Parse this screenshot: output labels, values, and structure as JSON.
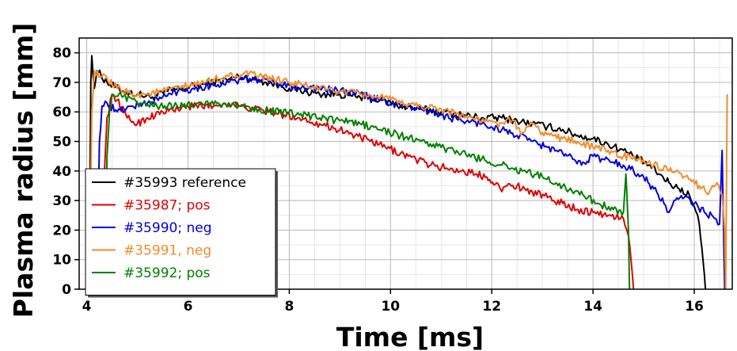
{
  "chart_data": {
    "type": "line",
    "xlabel": "Time [ms]",
    "ylabel": "Plasma radius [mm]",
    "xlim": [
      3.85,
      16.75
    ],
    "ylim": [
      0,
      85
    ],
    "x_ticks": [
      4,
      6,
      8,
      10,
      12,
      14,
      16
    ],
    "y_ticks": [
      0,
      10,
      20,
      30,
      40,
      50,
      60,
      70,
      80
    ],
    "grid": true,
    "legend_position": "lower-left",
    "series": [
      {
        "name": "#35993 reference",
        "color": "#000000",
        "points": [
          [
            4.05,
            0
          ],
          [
            4.08,
            70
          ],
          [
            4.1,
            79
          ],
          [
            4.15,
            68
          ],
          [
            4.2,
            74
          ],
          [
            4.4,
            70
          ],
          [
            4.7,
            67
          ],
          [
            5.0,
            66
          ],
          [
            5.3,
            65
          ],
          [
            5.6,
            67
          ],
          [
            5.9,
            68
          ],
          [
            6.2,
            69
          ],
          [
            6.5,
            70
          ],
          [
            6.8,
            71
          ],
          [
            7.0,
            72
          ],
          [
            7.3,
            71
          ],
          [
            7.6,
            70
          ],
          [
            7.8,
            69
          ],
          [
            8.0,
            68
          ],
          [
            8.3,
            67
          ],
          [
            8.6,
            66
          ],
          [
            9.0,
            66
          ],
          [
            9.4,
            65
          ],
          [
            9.8,
            64
          ],
          [
            10.2,
            62
          ],
          [
            10.6,
            61
          ],
          [
            11.0,
            60
          ],
          [
            11.4,
            59
          ],
          [
            11.8,
            58
          ],
          [
            12.2,
            58
          ],
          [
            12.5,
            57
          ],
          [
            12.8,
            56
          ],
          [
            13.1,
            55
          ],
          [
            13.4,
            54
          ],
          [
            13.7,
            52
          ],
          [
            14.0,
            51
          ],
          [
            14.3,
            49
          ],
          [
            14.6,
            47
          ],
          [
            14.9,
            44
          ],
          [
            15.1,
            42
          ],
          [
            15.3,
            39
          ],
          [
            15.5,
            36
          ],
          [
            15.7,
            34
          ],
          [
            15.9,
            32
          ],
          [
            16.0,
            28
          ],
          [
            16.1,
            22
          ],
          [
            16.15,
            14
          ],
          [
            16.2,
            5
          ],
          [
            16.22,
            0
          ]
        ]
      },
      {
        "name": "#35987; pos",
        "color": "#e00000",
        "points": [
          [
            4.3,
            0
          ],
          [
            4.35,
            40
          ],
          [
            4.4,
            58
          ],
          [
            4.5,
            66
          ],
          [
            4.6,
            64
          ],
          [
            4.8,
            58
          ],
          [
            5.0,
            56
          ],
          [
            5.2,
            58
          ],
          [
            5.5,
            60
          ],
          [
            5.8,
            61
          ],
          [
            6.1,
            62
          ],
          [
            6.5,
            62
          ],
          [
            6.8,
            63
          ],
          [
            7.0,
            62
          ],
          [
            7.3,
            61
          ],
          [
            7.6,
            60
          ],
          [
            7.9,
            59
          ],
          [
            8.2,
            58
          ],
          [
            8.6,
            56
          ],
          [
            9.0,
            54
          ],
          [
            9.3,
            52
          ],
          [
            9.6,
            50
          ],
          [
            9.9,
            48
          ],
          [
            10.2,
            46
          ],
          [
            10.5,
            44
          ],
          [
            10.8,
            42
          ],
          [
            11.1,
            41
          ],
          [
            11.4,
            40
          ],
          [
            11.7,
            39
          ],
          [
            11.9,
            38
          ],
          [
            12.1,
            36
          ],
          [
            12.2,
            33
          ],
          [
            12.3,
            35
          ],
          [
            12.5,
            35
          ],
          [
            12.8,
            33
          ],
          [
            13.1,
            31
          ],
          [
            13.4,
            29
          ],
          [
            13.7,
            27
          ],
          [
            14.0,
            26
          ],
          [
            14.3,
            25
          ],
          [
            14.6,
            24
          ],
          [
            14.7,
            18
          ],
          [
            14.75,
            10
          ],
          [
            14.8,
            0
          ]
        ]
      },
      {
        "name": "#35990; neg",
        "color": "#0000dd",
        "points": [
          [
            4.2,
            0
          ],
          [
            4.25,
            50
          ],
          [
            4.3,
            62
          ],
          [
            4.4,
            63
          ],
          [
            4.6,
            60
          ],
          [
            4.9,
            62
          ],
          [
            5.2,
            63
          ],
          [
            5.5,
            65
          ],
          [
            5.8,
            67
          ],
          [
            6.1,
            68
          ],
          [
            6.5,
            69
          ],
          [
            6.8,
            70
          ],
          [
            7.1,
            71
          ],
          [
            7.4,
            71
          ],
          [
            7.7,
            70
          ],
          [
            8.0,
            69
          ],
          [
            8.3,
            68
          ],
          [
            8.6,
            68
          ],
          [
            9.0,
            67
          ],
          [
            9.4,
            66
          ],
          [
            9.8,
            64
          ],
          [
            10.2,
            62
          ],
          [
            10.6,
            61
          ],
          [
            11.0,
            59
          ],
          [
            11.4,
            57
          ],
          [
            11.8,
            56
          ],
          [
            12.2,
            54
          ],
          [
            12.5,
            52
          ],
          [
            12.8,
            50
          ],
          [
            13.1,
            48
          ],
          [
            13.4,
            46
          ],
          [
            13.6,
            44
          ],
          [
            13.8,
            43
          ],
          [
            14.0,
            45
          ],
          [
            14.2,
            44
          ],
          [
            14.4,
            43
          ],
          [
            14.6,
            42
          ],
          [
            14.8,
            40
          ],
          [
            15.0,
            38
          ],
          [
            15.2,
            34
          ],
          [
            15.4,
            29
          ],
          [
            15.5,
            26
          ],
          [
            15.6,
            30
          ],
          [
            15.8,
            31
          ],
          [
            16.0,
            29
          ],
          [
            16.2,
            26
          ],
          [
            16.4,
            24
          ],
          [
            16.5,
            22
          ],
          [
            16.55,
            47
          ],
          [
            16.6,
            0
          ]
        ]
      },
      {
        "name": "#35991, neg",
        "color": "#f28c28",
        "points": [
          [
            4.05,
            0
          ],
          [
            4.1,
            60
          ],
          [
            4.15,
            74
          ],
          [
            4.3,
            72
          ],
          [
            4.6,
            68
          ],
          [
            4.9,
            66
          ],
          [
            5.2,
            66
          ],
          [
            5.5,
            67
          ],
          [
            5.8,
            68
          ],
          [
            6.1,
            69
          ],
          [
            6.5,
            71
          ],
          [
            6.8,
            72
          ],
          [
            7.1,
            73
          ],
          [
            7.4,
            72
          ],
          [
            7.7,
            71
          ],
          [
            8.0,
            70
          ],
          [
            8.3,
            69
          ],
          [
            8.6,
            68
          ],
          [
            9.0,
            67
          ],
          [
            9.4,
            66
          ],
          [
            9.8,
            65
          ],
          [
            10.2,
            63
          ],
          [
            10.6,
            62
          ],
          [
            11.0,
            61
          ],
          [
            11.4,
            59
          ],
          [
            11.8,
            57
          ],
          [
            12.1,
            56
          ],
          [
            12.4,
            57
          ],
          [
            12.6,
            53
          ],
          [
            12.8,
            56
          ],
          [
            13.0,
            53
          ],
          [
            13.2,
            52
          ],
          [
            13.4,
            51
          ],
          [
            13.7,
            50
          ],
          [
            14.0,
            48
          ],
          [
            14.3,
            47
          ],
          [
            14.6,
            45
          ],
          [
            14.9,
            44
          ],
          [
            15.2,
            42
          ],
          [
            15.5,
            40
          ],
          [
            15.8,
            38
          ],
          [
            16.1,
            35
          ],
          [
            16.3,
            33
          ],
          [
            16.45,
            36
          ],
          [
            16.55,
            32
          ],
          [
            16.6,
            20
          ],
          [
            16.62,
            0
          ],
          [
            16.65,
            66
          ]
        ]
      },
      {
        "name": "#35992; pos",
        "color": "#008000",
        "points": [
          [
            4.35,
            0
          ],
          [
            4.4,
            45
          ],
          [
            4.45,
            60
          ],
          [
            4.5,
            66
          ],
          [
            4.7,
            65
          ],
          [
            5.0,
            63
          ],
          [
            5.3,
            62
          ],
          [
            5.6,
            62
          ],
          [
            5.9,
            62
          ],
          [
            6.2,
            63
          ],
          [
            6.6,
            63
          ],
          [
            7.0,
            62
          ],
          [
            7.4,
            61
          ],
          [
            7.8,
            60
          ],
          [
            8.2,
            59
          ],
          [
            8.6,
            58
          ],
          [
            9.0,
            57
          ],
          [
            9.4,
            56
          ],
          [
            9.8,
            54
          ],
          [
            10.2,
            52
          ],
          [
            10.6,
            50
          ],
          [
            11.0,
            48
          ],
          [
            11.4,
            46
          ],
          [
            11.8,
            44
          ],
          [
            12.2,
            42
          ],
          [
            12.6,
            40
          ],
          [
            13.0,
            38
          ],
          [
            13.4,
            35
          ],
          [
            13.8,
            32
          ],
          [
            14.1,
            29
          ],
          [
            14.4,
            27
          ],
          [
            14.6,
            26
          ],
          [
            14.65,
            39
          ],
          [
            14.7,
            20
          ],
          [
            14.72,
            0
          ]
        ]
      }
    ]
  }
}
